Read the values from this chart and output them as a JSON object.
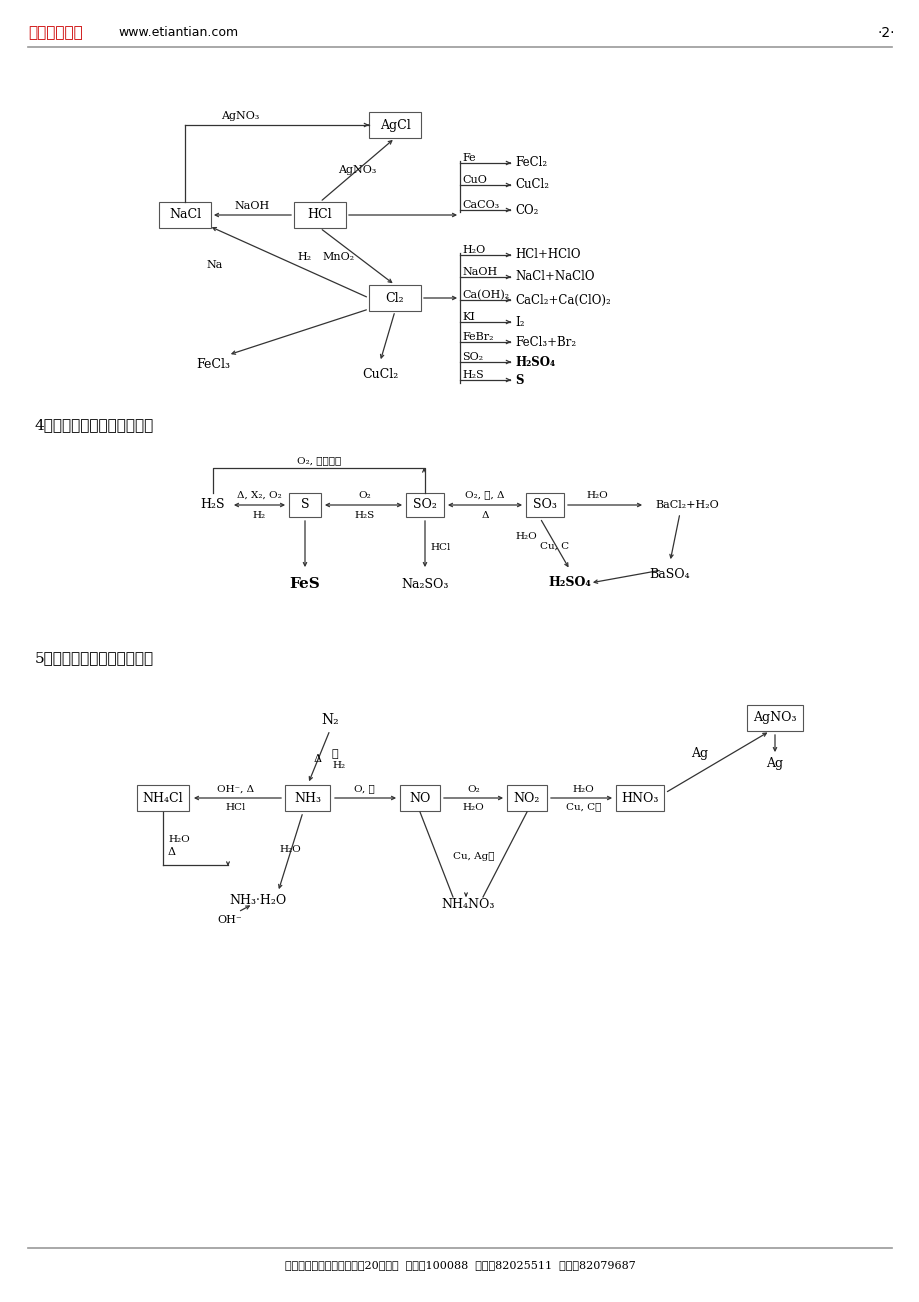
{
  "header_school": "北京四中网校",
  "header_web": "www.etiantian.com",
  "header_page": "·2·",
  "header_school_color": "#CC0000",
  "footer_text": "地址：北京市西城区新德街20号四层  邮编：100088  电话：82025511  传真：82079687",
  "sec4_title": "4．硫及其化合物的转化关系",
  "sec5_title": "5．氮及其化合物的转化关系"
}
